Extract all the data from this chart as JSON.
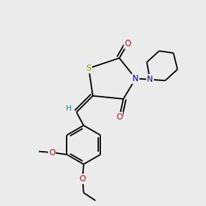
{
  "background_color": "#ebebeb",
  "bond_color": "#000000",
  "atom_colors": {
    "S": "#999900",
    "N": "#0000cc",
    "O": "#ff0000",
    "H": "#008080",
    "C": "#000000"
  },
  "figsize": [
    3.0,
    3.0
  ],
  "dpi": 100
}
